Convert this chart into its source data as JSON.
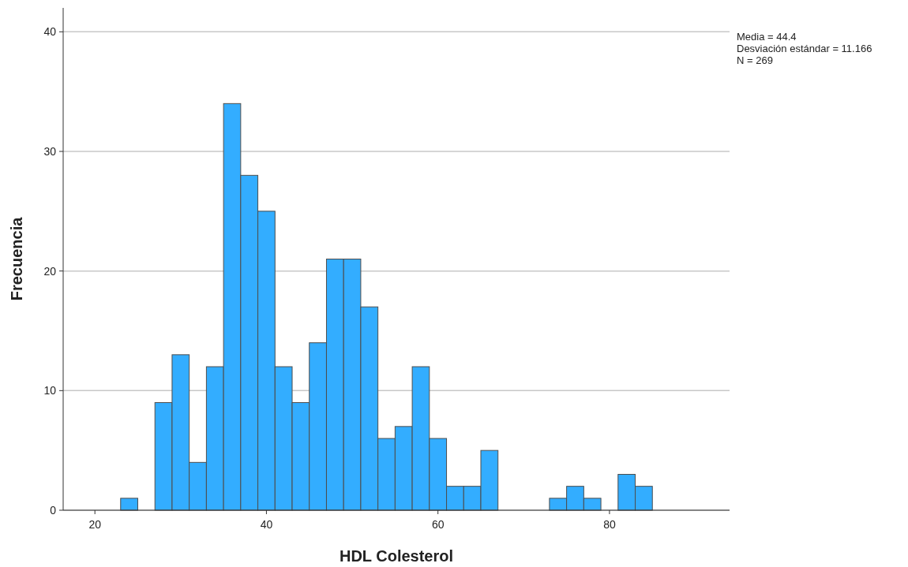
{
  "chart_data": {
    "type": "histogram",
    "xlabel": "HDL Colesterol",
    "ylabel": "Frecuencia",
    "bins": [
      23,
      25,
      27,
      29,
      31,
      33,
      35,
      37,
      39,
      41,
      43,
      45,
      47,
      49,
      51,
      53,
      55,
      57,
      59,
      61,
      63,
      65,
      67,
      69,
      71,
      73,
      75,
      77,
      79,
      81,
      83,
      85
    ],
    "values": [
      1,
      0,
      9,
      13,
      4,
      12,
      34,
      28,
      25,
      12,
      9,
      14,
      21,
      21,
      17,
      6,
      7,
      12,
      6,
      2,
      2,
      5,
      0,
      0,
      0,
      1,
      2,
      1,
      0,
      3,
      2
    ],
    "color": "#33adff",
    "xlim": [
      16.3,
      94
    ],
    "xticks": [
      20,
      40,
      60,
      80
    ],
    "ylim": [
      0,
      42
    ],
    "yticks": [
      0,
      10,
      20,
      30,
      40
    ],
    "grid": "y",
    "annotations": [
      "Media = 44.4",
      "Desviación estándar = 11.166",
      "N = 269"
    ]
  }
}
